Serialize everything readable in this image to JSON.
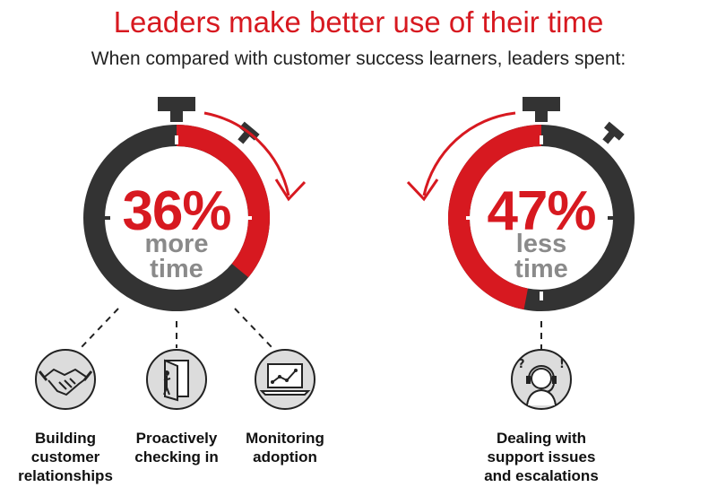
{
  "header": {
    "title": "Leaders make better use of their time",
    "subtitle": "When compared with customer success learners, leaders spent:"
  },
  "colors": {
    "accent": "#d71920",
    "dark": "#333333",
    "gray": "#8a8a8a",
    "icon_bg": "#dcdcdc"
  },
  "left_timer": {
    "percent": "36%",
    "word1": "more",
    "word2": "time",
    "fill_fraction": 0.36,
    "direction": "clockwise"
  },
  "right_timer": {
    "percent": "47%",
    "word1": "less",
    "word2": "time",
    "fill_fraction": 0.47,
    "direction": "counterclockwise"
  },
  "activities": {
    "building": {
      "line1": "Building",
      "line2": "customer",
      "line3": "relationships",
      "icon": "handshake-icon"
    },
    "checking": {
      "line1": "Proactively",
      "line2": "checking in",
      "icon": "door-icon"
    },
    "monitoring": {
      "line1": "Monitoring",
      "line2": "adoption",
      "icon": "laptop-chart-icon"
    },
    "support": {
      "line1": "Dealing with",
      "line2": "support issues",
      "line3": "and escalations",
      "icon": "support-agent-icon"
    }
  }
}
